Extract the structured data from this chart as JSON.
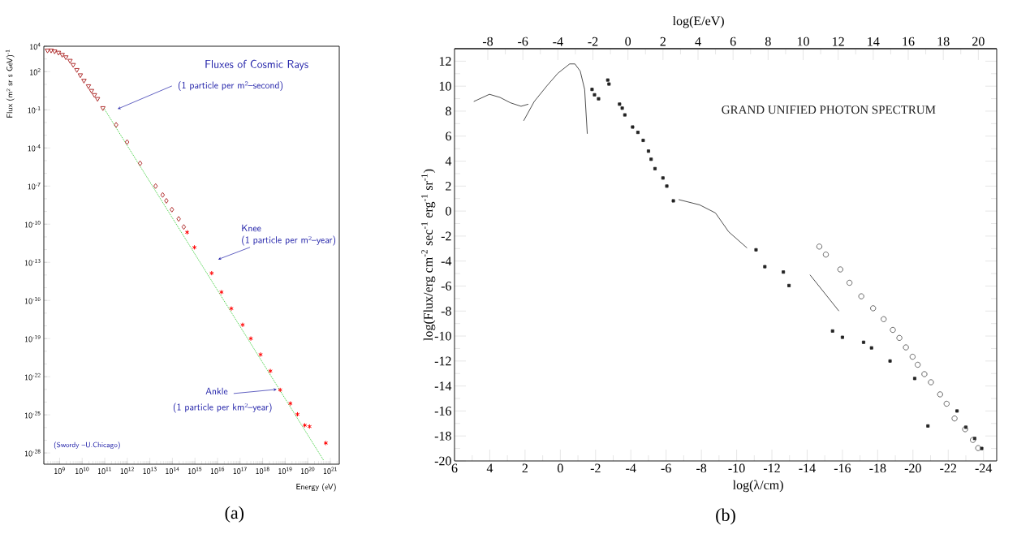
{
  "chart_data": [
    {
      "type": "scatter",
      "title": "Fluxes of Cosmic Rays",
      "xlabel": "Energy (eV)",
      "ylabel": "Flux (m² sr s GeV)$^{-1}$",
      "log": "xy",
      "xlim": [
        200000000.0,
        2.5e+21
      ],
      "ylim": [
        1.3e-29,
        10000.0
      ],
      "xticks": [
        {
          "value": 1000000000.0,
          "label": "10$^{9}$"
        },
        {
          "value": 10000000000.0,
          "label": "10$^{10}$"
        },
        {
          "value": 100000000000.0,
          "label": "10$^{11}$"
        },
        {
          "value": 1000000000000.0,
          "label": "10$^{12}$"
        },
        {
          "value": 10000000000000.0,
          "label": "10$^{13}$"
        },
        {
          "value": 100000000000000.0,
          "label": "10$^{14}$"
        },
        {
          "value": 1000000000000000.0,
          "label": "10$^{15}$"
        },
        {
          "value": 1e+16,
          "label": "10$^{16}$"
        },
        {
          "value": 1e+17,
          "label": "10$^{17}$"
        },
        {
          "value": 1e+18,
          "label": "10$^{18}$"
        },
        {
          "value": 1e+19,
          "label": "10$^{19}$"
        },
        {
          "value": 1e+20,
          "label": "10$^{20}$"
        },
        {
          "value": 1e+21,
          "label": "10$^{21}$"
        }
      ],
      "yticks": [
        {
          "value": 10000.0,
          "label": "10$^{4}$"
        },
        {
          "value": 100.0,
          "label": "10$^{2}$"
        },
        {
          "value": 0.1,
          "label": "10$^{-1}$"
        },
        {
          "value": 0.0001,
          "label": "10$^{-4}$"
        },
        {
          "value": 1e-07,
          "label": "10$^{-7}$"
        },
        {
          "value": 1e-10,
          "label": "10$^{-10}$"
        },
        {
          "value": 1e-13,
          "label": "10$^{-13}$"
        },
        {
          "value": 1e-16,
          "label": "10$^{-16}$"
        },
        {
          "value": 1e-19,
          "label": "10$^{-19}$"
        },
        {
          "value": 1e-22,
          "label": "10$^{-22}$"
        },
        {
          "value": 1e-25,
          "label": "10$^{-25}$"
        },
        {
          "value": 1e-28,
          "label": "10$^{-28}$"
        }
      ],
      "series": [
        {
          "color": "#b03030",
          "marker": "triangle",
          "x": [
            290000000.0,
            420000000.0,
            600000000.0,
            890000000.0,
            1300000000.0,
            1900000000.0,
            2900000000.0,
            4000000000.0,
            5800000000.0,
            8300000000.0,
            12000000000.0,
            19000000000.0,
            26000000000.0,
            35000000000.0,
            48000000000.0,
            83000000000.0
          ],
          "values": [
            4800.0,
            4800.0,
            4100.0,
            3200.0,
            2200.0,
            1400.0,
            740.0,
            350.0,
            140.0,
            54,
            20,
            7.4,
            3.2,
            1.5,
            0.74,
            0.14
          ]
        },
        {
          "color": "#b03030",
          "marker": "diamond",
          "x": [
            320000000000.0,
            980000000000.0,
            3700000000000.0,
            18000000000000.0,
            37000000000000.0,
            54000000000000.0,
            95000000000000.0,
            190000000000000.0,
            320000000000000.0
          ],
          "values": [
            0.0065,
            0.00029,
            6.2e-06,
            1e-07,
            2e-08,
            6.9e-09,
            1.4e-09,
            2.6e-10,
            6e-11
          ]
        },
        {
          "color": "#ff0000",
          "marker": "cross",
          "x": [
            450000000000000.0,
            950000000000000.0,
            5500000000000000.0,
            1.5e+16,
            4.1e+16,
            1.3e+17,
            3e+17,
            8.1e+17,
            2.2e+18,
            6e+18,
            1.7e+19,
            3.5e+19,
            7.4e+19,
            1.2e+20,
            6.3e+20
          ],
          "values": [
            2.3e-11,
            1.5e-12,
            1.4e-14,
            4.5e-16,
            2.3e-17,
            1.2e-18,
            1e-19,
            5.5e-21,
            2.8e-22,
            9.1e-24,
            7.8e-25,
            1.1e-25,
            1.5e-26,
            1.2e-26,
            6e-28
          ]
        },
        {
          "type": "line",
          "color": "#33cc33",
          "marker": "none",
          "line_style": "dotted",
          "x": [
            93000000000.0,
            5e+20
          ],
          "values": [
            0.13,
            2.7e-29
          ]
        }
      ],
      "annotations": [
        "(1 particle per m²–second)",
        "Knee",
        "(1 particle per m²–year)",
        "Ankle",
        "(1 particle per km²–year)",
        "(Swordy –U.Chicago)",
        "(a)"
      ]
    },
    {
      "type": "scatter",
      "title": "GRAND UNIFIED PHOTON SPECTRUM",
      "xlabel": "log(λ/cm)",
      "x2label": "log(E/eV)",
      "ylabel": "log(Flux/erg cm$^{-2}$ sec$^{-1}$ erg$^{-1}$ sr$^{-1}$)",
      "xlim": [
        6,
        -24.75
      ],
      "xticks": [
        6,
        4,
        2,
        0,
        -2,
        -4,
        -6,
        -8,
        -10,
        -12,
        -14,
        -16,
        -18,
        -20,
        -22,
        -24
      ],
      "x2lim": [
        -9.9,
        21.05
      ],
      "x2ticks": [
        -8,
        -6,
        -4,
        -2,
        0,
        2,
        4,
        6,
        8,
        10,
        12,
        14,
        16,
        18,
        20
      ],
      "ylim": [
        -20,
        13
      ],
      "yticks": [
        -20,
        -18,
        -16,
        -14,
        -12,
        -10,
        -8,
        -6,
        -4,
        -2,
        0,
        2,
        4,
        6,
        8,
        10,
        12
      ],
      "series": [
        {
          "type": "line",
          "color": "#222222",
          "marker": "none",
          "x": [
            4.91,
            4.02,
            3.42,
            2.83,
            2.23,
            1.81
          ],
          "values": [
            8.77,
            9.35,
            9.1,
            8.67,
            8.39,
            8.56
          ]
        },
        {
          "type": "line",
          "color": "#222222",
          "marker": "none",
          "x": [
            2.08,
            1.48,
            0.74,
            0.14,
            -0.53,
            -0.83,
            -1.13,
            -1.38,
            -1.53
          ],
          "values": [
            7.23,
            8.77,
            10.06,
            11.03,
            11.78,
            11.78,
            11.2,
            9.74,
            6.19
          ]
        },
        {
          "color": "#222222",
          "marker": "square",
          "x": [
            -1.8,
            -1.94,
            -2.17,
            -2.69,
            -2.76,
            -3.36,
            -3.51,
            -3.66,
            -4.1,
            -4.4,
            -4.7,
            -5.0,
            -5.15,
            -5.37,
            -5.82,
            -6.04,
            -6.41
          ],
          "values": [
            9.74,
            9.31,
            8.99,
            10.49,
            10.17,
            8.56,
            8.24,
            7.7,
            6.73,
            6.3,
            5.66,
            4.8,
            4.15,
            3.4,
            2.65,
            2.0,
            0.82
          ]
        },
        {
          "type": "line",
          "color": "#222222",
          "marker": "none",
          "x": [
            -6.71,
            -7.9,
            -8.8,
            -9.55,
            -10.59
          ],
          "values": [
            0.92,
            0.5,
            -0.15,
            -1.66,
            -2.95
          ]
        },
        {
          "color": "#222222",
          "marker": "square",
          "x": [
            -11.1,
            -11.6,
            -12.65,
            -12.97
          ],
          "values": [
            -3.1,
            -4.45,
            -4.88,
            -5.96
          ]
        },
        {
          "type": "line",
          "color": "#222222",
          "marker": "none",
          "x": [
            -14.16,
            -15.8
          ],
          "values": [
            -5.1,
            -8.0
          ]
        },
        {
          "color": "#222222",
          "marker": "square",
          "x": [
            -15.44,
            -16.0,
            -17.2,
            -17.65,
            -18.7,
            -20.1,
            -20.85,
            -22.5,
            -23.0,
            -23.5,
            -23.9
          ],
          "values": [
            -9.6,
            -10.1,
            -10.5,
            -10.95,
            -12.0,
            -13.4,
            -17.2,
            -16.0,
            -17.3,
            -18.2,
            -19.0
          ]
        },
        {
          "color": "#444444",
          "marker": "circle",
          "x": [
            -14.69,
            -15.06,
            -15.88,
            -16.4,
            -17.07,
            -17.74,
            -18.34,
            -18.86,
            -19.23,
            -19.6,
            -19.98,
            -20.27,
            -20.65,
            -21.02,
            -21.54,
            -21.91,
            -22.36,
            -22.96,
            -23.4,
            -23.7
          ],
          "values": [
            -2.84,
            -3.48,
            -4.67,
            -5.74,
            -6.82,
            -7.78,
            -8.65,
            -9.51,
            -10.15,
            -10.91,
            -11.66,
            -12.3,
            -13.05,
            -13.7,
            -14.67,
            -15.42,
            -16.6,
            -17.46,
            -18.32,
            -18.97
          ]
        }
      ],
      "annotations": [
        "(b)"
      ]
    }
  ]
}
